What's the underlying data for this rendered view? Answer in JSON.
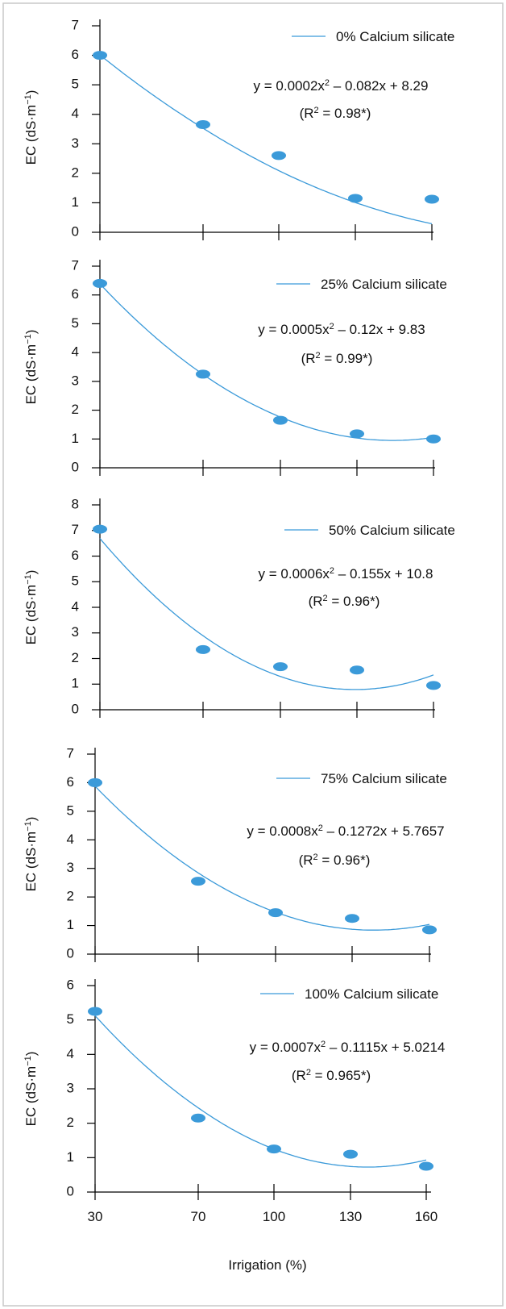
{
  "chart_data": [
    {
      "type": "scatter",
      "ylabel": "EC (dS·m",
      "ylabel_sup": "−1",
      "ylabel_close": ")",
      "ylim": [
        0,
        7
      ],
      "yticks": [
        0,
        1,
        2,
        3,
        4,
        5,
        6,
        7
      ],
      "xlim": [
        30,
        160
      ],
      "series": [
        {
          "name": "0% Calcium silicate",
          "x": [
            30,
            70,
            100,
            130,
            160
          ],
          "y": [
            6.0,
            3.65,
            2.6,
            1.15,
            1.12
          ],
          "fit": {
            "a": 0.0002,
            "b": -0.082,
            "c": 8.29
          },
          "equation": {
            "p1": "y = 0.0002x",
            "sup": "2",
            "p2": " – 0.082x + 8.29"
          },
          "r2": {
            "p1": "(R",
            "sup": "2",
            "p2": " = 0.98*)"
          }
        }
      ]
    },
    {
      "type": "scatter",
      "ylabel": "EC (dS·m",
      "ylabel_sup": "−1",
      "ylabel_close": ")",
      "ylim": [
        0,
        7
      ],
      "yticks": [
        0,
        1,
        2,
        3,
        4,
        5,
        6,
        7
      ],
      "xlim": [
        30,
        160
      ],
      "series": [
        {
          "name": "25% Calcium silicate",
          "x": [
            30,
            70,
            100,
            130,
            160
          ],
          "y": [
            6.4,
            3.25,
            1.65,
            1.18,
            1.0
          ],
          "fit": {
            "a": 0.0005,
            "b": -0.12,
            "c": 9.83
          },
          "equation": {
            "p1": "y = 0.0005x",
            "sup": "2",
            "p2": " – 0.12x + 9.83"
          },
          "r2": {
            "p1": "(R",
            "sup": "2",
            "p2": " = 0.99*)"
          }
        }
      ]
    },
    {
      "type": "scatter",
      "ylabel": "EC (dS·m",
      "ylabel_sup": "−1",
      "ylabel_close": ")",
      "ylim": [
        0,
        8
      ],
      "yticks": [
        0,
        1,
        2,
        3,
        4,
        5,
        6,
        7,
        8
      ],
      "xlim": [
        30,
        160
      ],
      "series": [
        {
          "name": "50% Calcium silicate",
          "x": [
            30,
            70,
            100,
            130,
            160
          ],
          "y": [
            7.05,
            2.35,
            1.68,
            1.55,
            0.95
          ],
          "fit": {
            "a": 0.0006,
            "b": -0.155,
            "c": 10.8
          },
          "equation": {
            "p1": "y = 0.0006x",
            "sup": "2",
            "p2": " – 0.155x + 10.8"
          },
          "r2": {
            "p1": "(R",
            "sup": "2",
            "p2": " = 0.96*)"
          }
        }
      ]
    },
    {
      "type": "scatter",
      "ylabel": "EC (dS·m",
      "ylabel_sup": "−1",
      "ylabel_close": ")",
      "ylim": [
        0,
        7
      ],
      "yticks": [
        0,
        1,
        2,
        3,
        4,
        5,
        6,
        7
      ],
      "xlim": [
        30,
        160
      ],
      "series": [
        {
          "name": "75% Calcium silicate",
          "x": [
            30,
            70,
            100,
            130,
            160
          ],
          "y": [
            6.0,
            2.55,
            1.45,
            1.25,
            0.85
          ],
          "fit": {
            "a": 0.0008,
            "b": -0.1272,
            "c": 5.7657
          },
          "equation": {
            "p1": "y = 0.0008x",
            "sup": "2",
            "p2": " – 0.1272x + 5.7657"
          },
          "r2": {
            "p1": "(R",
            "sup": "2",
            "p2": " = 0.96*)"
          }
        }
      ]
    },
    {
      "type": "scatter",
      "ylabel": "EC (dS·m",
      "ylabel_sup": "−1",
      "ylabel_close": ")",
      "ylim": [
        0,
        6
      ],
      "yticks": [
        0,
        1,
        2,
        3,
        4,
        5,
        6
      ],
      "xlim": [
        30,
        160
      ],
      "xticks": [
        30,
        70,
        100,
        130,
        160
      ],
      "xlabel": "Irrigation (%)",
      "series": [
        {
          "name": "100% Calcium silicate",
          "x": [
            30,
            70,
            100,
            130,
            160
          ],
          "y": [
            5.25,
            2.15,
            1.25,
            1.1,
            0.75
          ],
          "fit": {
            "a": 0.0007,
            "b": -0.1115,
            "c": 5.0214
          },
          "equation": {
            "p1": "y = 0.0007x",
            "sup": "2",
            "p2": " – 0.1115x + 5.0214"
          },
          "r2": {
            "p1": "(R",
            "sup": "2",
            "p2": " = 0.965*)"
          }
        }
      ]
    }
  ],
  "style": {
    "marker_color": "#3b9ad9",
    "line_color": "#3b9ad9",
    "axis_color": "#000000"
  }
}
